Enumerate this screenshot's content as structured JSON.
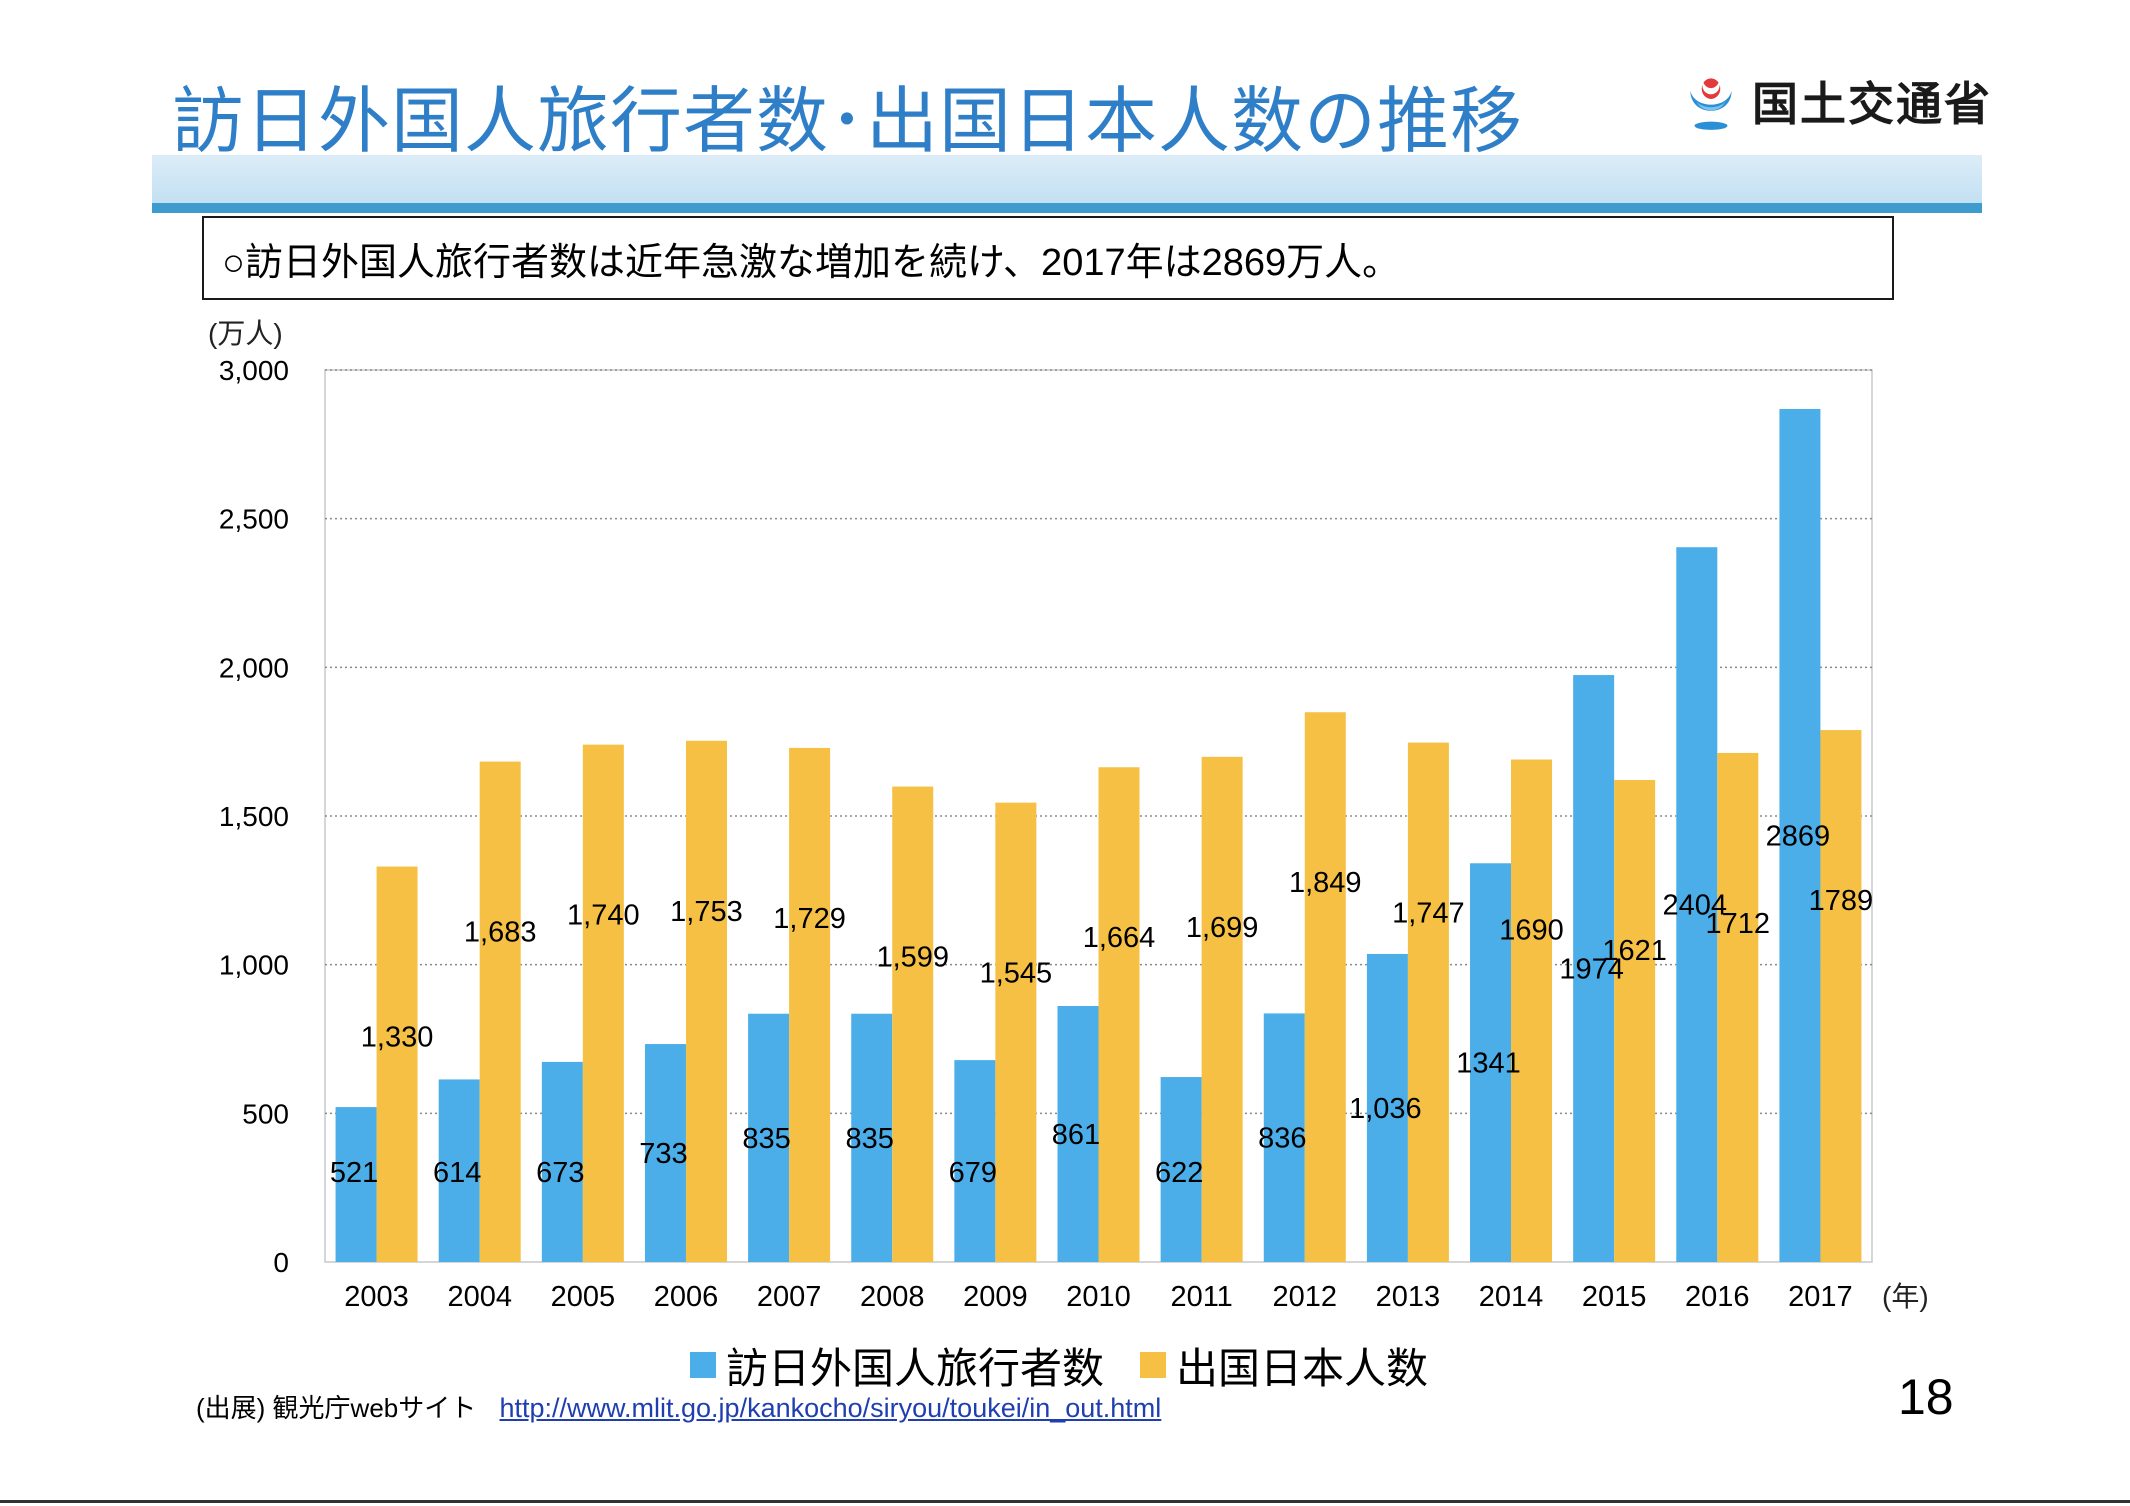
{
  "slide": {
    "title": "訪日外国人旅行者数･出国日本人数の推移",
    "logo_text": "国土交通省",
    "summary": "○訪日外国人旅行者数は近年急激な増加を続け、2017年は2869万人。",
    "unit_label": "(万人)",
    "source_label": "(出展) 観光庁webサイト",
    "source_url": "http://www.mlit.go.jp/kankocho/siryou/toukei/in_out.html",
    "page_number": "18",
    "logo_icon": "mlit-logo-icon"
  },
  "chart_data": {
    "type": "bar",
    "categories": [
      "2003",
      "2004",
      "2005",
      "2006",
      "2007",
      "2008",
      "2009",
      "2010",
      "2011",
      "2012",
      "2013",
      "2014",
      "2015",
      "2016",
      "2017"
    ],
    "x_unit": "(年)",
    "ylabel": "(万人)",
    "ylim": [
      0,
      3000
    ],
    "yticks": [
      0,
      500,
      1000,
      1500,
      2000,
      2500,
      3000
    ],
    "ytick_labels": [
      "0",
      "500",
      "1,000",
      "1,500",
      "2,000",
      "2,500",
      "3,000"
    ],
    "grid": true,
    "legend_position": "bottom",
    "series": [
      {
        "name": "訪日外国人旅行者数",
        "color": "#4baee8",
        "values": [
          521,
          614,
          673,
          733,
          835,
          835,
          679,
          861,
          622,
          836,
          1036,
          1341,
          1974,
          2404,
          2869
        ],
        "labels": [
          "521",
          "614",
          "673",
          "733",
          "835",
          "835",
          "679",
          "861",
          "622",
          "836",
          "1,036",
          "1341",
          "1974",
          "2404",
          "2869"
        ]
      },
      {
        "name": "出国日本人数",
        "color": "#f5c043",
        "values": [
          1330,
          1683,
          1740,
          1753,
          1729,
          1599,
          1545,
          1664,
          1699,
          1849,
          1747,
          1690,
          1621,
          1712,
          1789
        ],
        "labels": [
          "1,330",
          "1,683",
          "1,740",
          "1,753",
          "1,729",
          "1,599",
          "1,545",
          "1,664",
          "1,699",
          "1,849",
          "1,747",
          "1690",
          "1621",
          "1712",
          "1789"
        ]
      }
    ]
  }
}
